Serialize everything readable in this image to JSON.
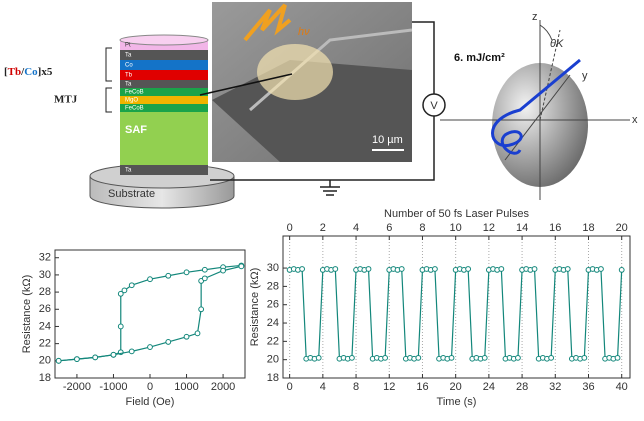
{
  "diagram": {
    "stack_label": {
      "parts": [
        "[",
        "Tb",
        "/",
        "Co",
        "]x5"
      ]
    },
    "mtj_label": "MTJ",
    "layers": [
      "Pt",
      "Ta",
      "Co",
      "Tb",
      "Ta",
      "FeCoB",
      "MgO",
      "FeCoB",
      "SAF",
      "Ta"
    ],
    "substrate": "Substrate",
    "photon": "hν",
    "scale_bar": "10 µm",
    "voltmeter": "V",
    "fluence": "6. mJ/cm²",
    "axes": {
      "z": "z",
      "y": "y",
      "x": "x",
      "angle": "θK"
    }
  },
  "chart_data": [
    {
      "type": "line",
      "xlabel": "Field (Oe)",
      "ylabel": "Resistance (kΩ)",
      "xlim": [
        -2600,
        2600
      ],
      "xticks": [
        -2000,
        -1000,
        0,
        1000,
        2000
      ],
      "ylim": [
        18,
        32.9
      ],
      "yticks": [
        18,
        20,
        22,
        24,
        26,
        28,
        30,
        32
      ],
      "series": [
        {
          "color": "#13877b",
          "x": [
            2500,
            2000,
            1500,
            1000,
            500,
            0,
            -500,
            -700,
            -800,
            -800,
            -800,
            -1000,
            -1500,
            -2000,
            -2500
          ],
          "values": [
            31.1,
            30.9,
            30.6,
            30.3,
            29.9,
            29.5,
            28.8,
            28.2,
            27.8,
            24,
            21,
            20.7,
            20.4,
            20.2,
            20.0
          ]
        },
        {
          "color": "#13877b",
          "x": [
            -2500,
            -2000,
            -1500,
            -1000,
            -500,
            0,
            500,
            1000,
            1300,
            1400,
            1400,
            1500,
            2000,
            2500
          ],
          "values": [
            20.0,
            20.2,
            20.4,
            20.7,
            21.1,
            21.6,
            22.2,
            22.8,
            23.2,
            26,
            29.3,
            29.6,
            30.5,
            31.0
          ]
        }
      ]
    },
    {
      "type": "line",
      "xlabel": "Time (s)",
      "ylabel": "Resistance (kΩ)",
      "x2label": "Number of 50 fs Laser Pulses",
      "xlim": [
        -0.8,
        41
      ],
      "xticks": [
        0,
        4,
        8,
        12,
        16,
        20,
        24,
        28,
        32,
        36,
        40
      ],
      "x2lim": [
        -0.4,
        20.5
      ],
      "x2ticks": [
        0,
        2,
        4,
        6,
        8,
        10,
        12,
        14,
        16,
        18,
        20
      ],
      "ylim": [
        18,
        33.5
      ],
      "yticks": [
        18,
        20,
        22,
        24,
        26,
        28,
        30
      ],
      "grid": true,
      "series": [
        {
          "color": "#13877b",
          "x": [
            0,
            0.5,
            1,
            1.5,
            2,
            2.5,
            3,
            3.5,
            4,
            4.5,
            5,
            5.5,
            6,
            6.5,
            7,
            7.5,
            8,
            8.5,
            9,
            9.5,
            10,
            10.5,
            11,
            11.5,
            12,
            12.5,
            13,
            13.5,
            14,
            14.5,
            15,
            15.5,
            16,
            16.5,
            17,
            17.5,
            18,
            18.5,
            19,
            19.5,
            20,
            20.5,
            21,
            21.5,
            22,
            22.5,
            23,
            23.5,
            24,
            24.5,
            25,
            25.5,
            26,
            26.5,
            27,
            27.5,
            28,
            28.5,
            29,
            29.5,
            30,
            30.5,
            31,
            31.5,
            32,
            32.5,
            33,
            33.5,
            34,
            34.5,
            35,
            35.5,
            36,
            36.5,
            37,
            37.5,
            38,
            38.5,
            39,
            39.5,
            40
          ],
          "values": [
            29.8,
            29.9,
            29.8,
            29.9,
            20.1,
            20.2,
            20.1,
            20.2,
            29.8,
            29.9,
            29.8,
            29.9,
            20.1,
            20.2,
            20.1,
            20.2,
            29.8,
            29.9,
            29.8,
            29.9,
            20.1,
            20.2,
            20.1,
            20.2,
            29.8,
            29.9,
            29.8,
            29.9,
            20.1,
            20.2,
            20.1,
            20.2,
            29.8,
            29.9,
            29.8,
            29.9,
            20.1,
            20.2,
            20.1,
            20.2,
            29.8,
            29.9,
            29.8,
            29.9,
            20.1,
            20.2,
            20.1,
            20.2,
            29.8,
            29.9,
            29.8,
            29.9,
            20.1,
            20.2,
            20.1,
            20.2,
            29.8,
            29.9,
            29.8,
            29.9,
            20.1,
            20.2,
            20.1,
            20.2,
            29.8,
            29.9,
            29.8,
            29.9,
            20.1,
            20.2,
            20.1,
            20.2,
            29.8,
            29.9,
            29.8,
            29.9,
            20.1,
            20.2,
            20.1,
            20.2,
            29.8
          ]
        }
      ]
    }
  ]
}
